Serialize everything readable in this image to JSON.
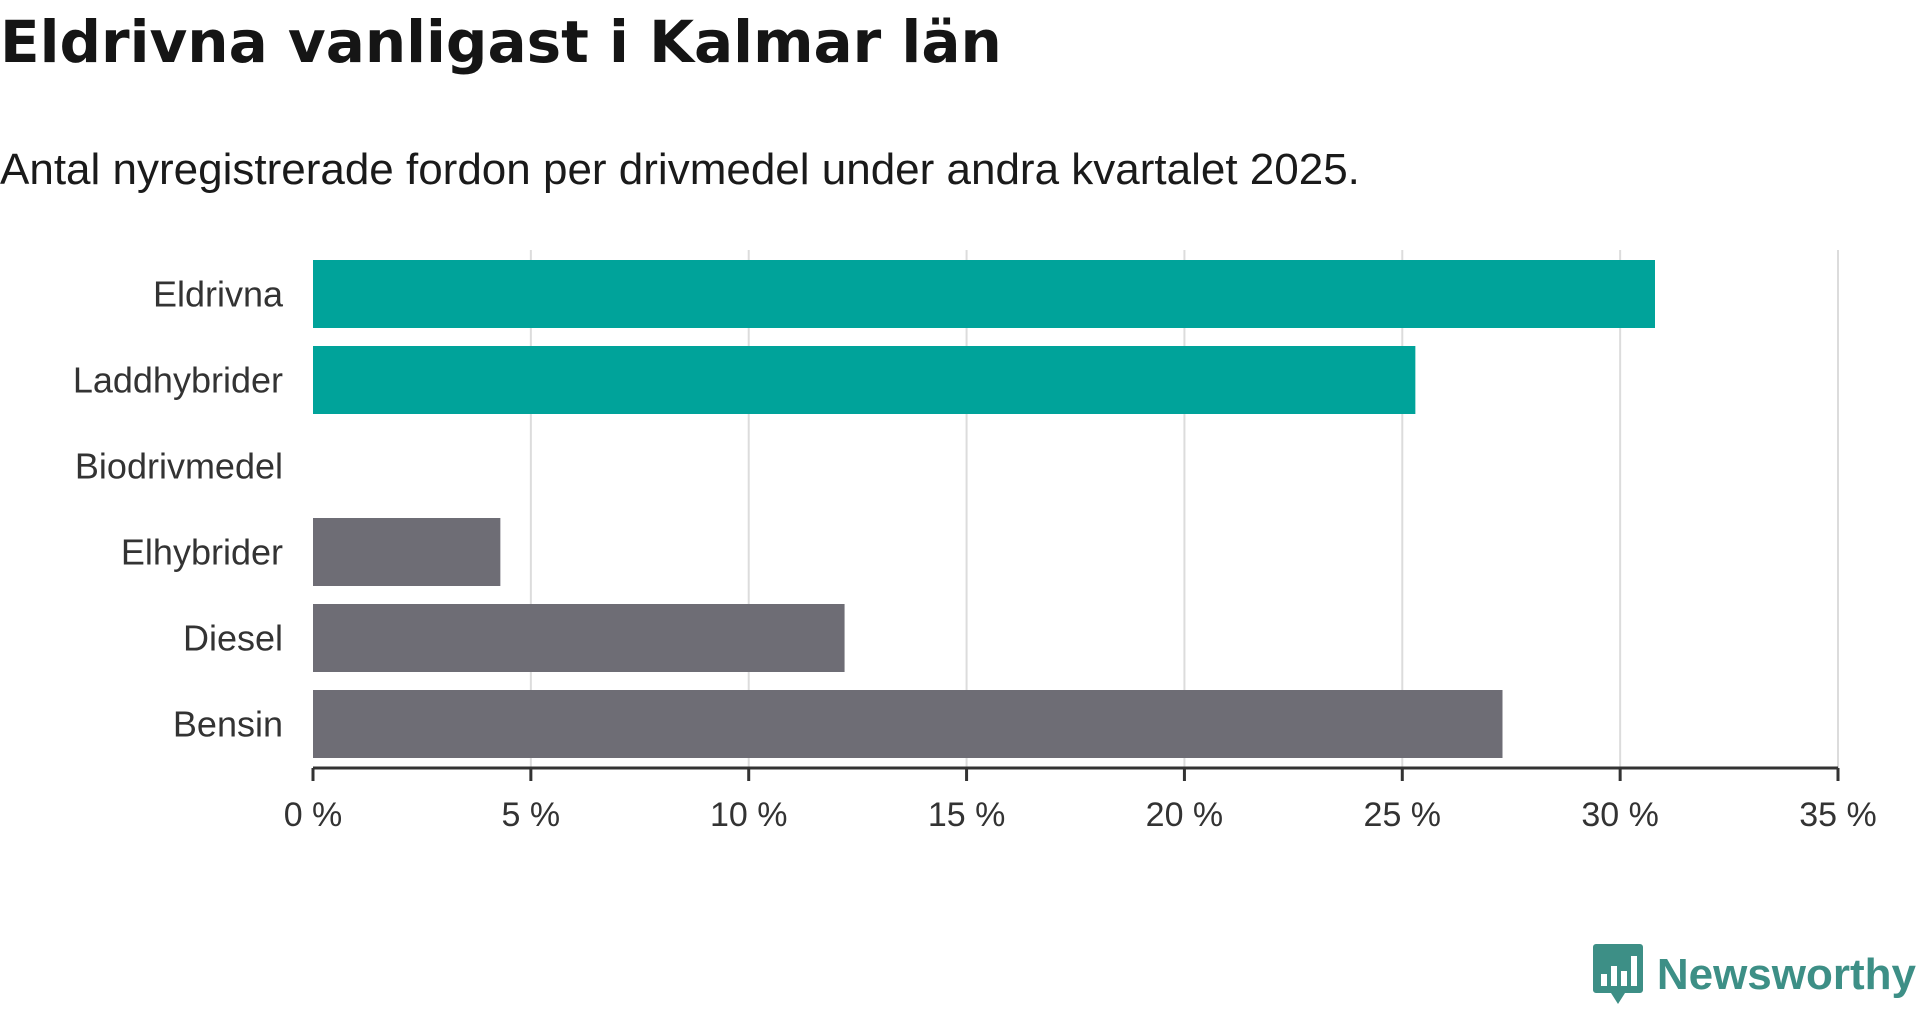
{
  "header": {
    "title": "Eldrivna vanligast i Kalmar län",
    "subtitle": "Antal nyregistrerade fordon per drivmedel under andra kvartalet 2025."
  },
  "chart_data": {
    "type": "bar",
    "orientation": "horizontal",
    "categories": [
      "Eldrivna",
      "Laddhybrider",
      "Biodrivmedel",
      "Elhybrider",
      "Diesel",
      "Bensin"
    ],
    "values": [
      30.8,
      25.3,
      0,
      4.3,
      12.2,
      27.3
    ],
    "colors": [
      "#00a39a",
      "#00a39a",
      "#00a39a",
      "#6e6d75",
      "#6e6d75",
      "#6e6d75"
    ],
    "xlim": [
      0,
      35
    ],
    "xticks": [
      0,
      5,
      10,
      15,
      20,
      25,
      30,
      35
    ],
    "xtick_labels": [
      "0 %",
      "5 %",
      "10 %",
      "15 %",
      "20 %",
      "25 %",
      "30 %",
      "35 %"
    ],
    "unit": "%",
    "grid": "vertical",
    "xlabel": "",
    "ylabel": ""
  },
  "branding": {
    "logo_text": "Newsworthy",
    "logo_icon": "bar-chart-speech-bubble-icon",
    "logo_color": "#3d8f86"
  }
}
